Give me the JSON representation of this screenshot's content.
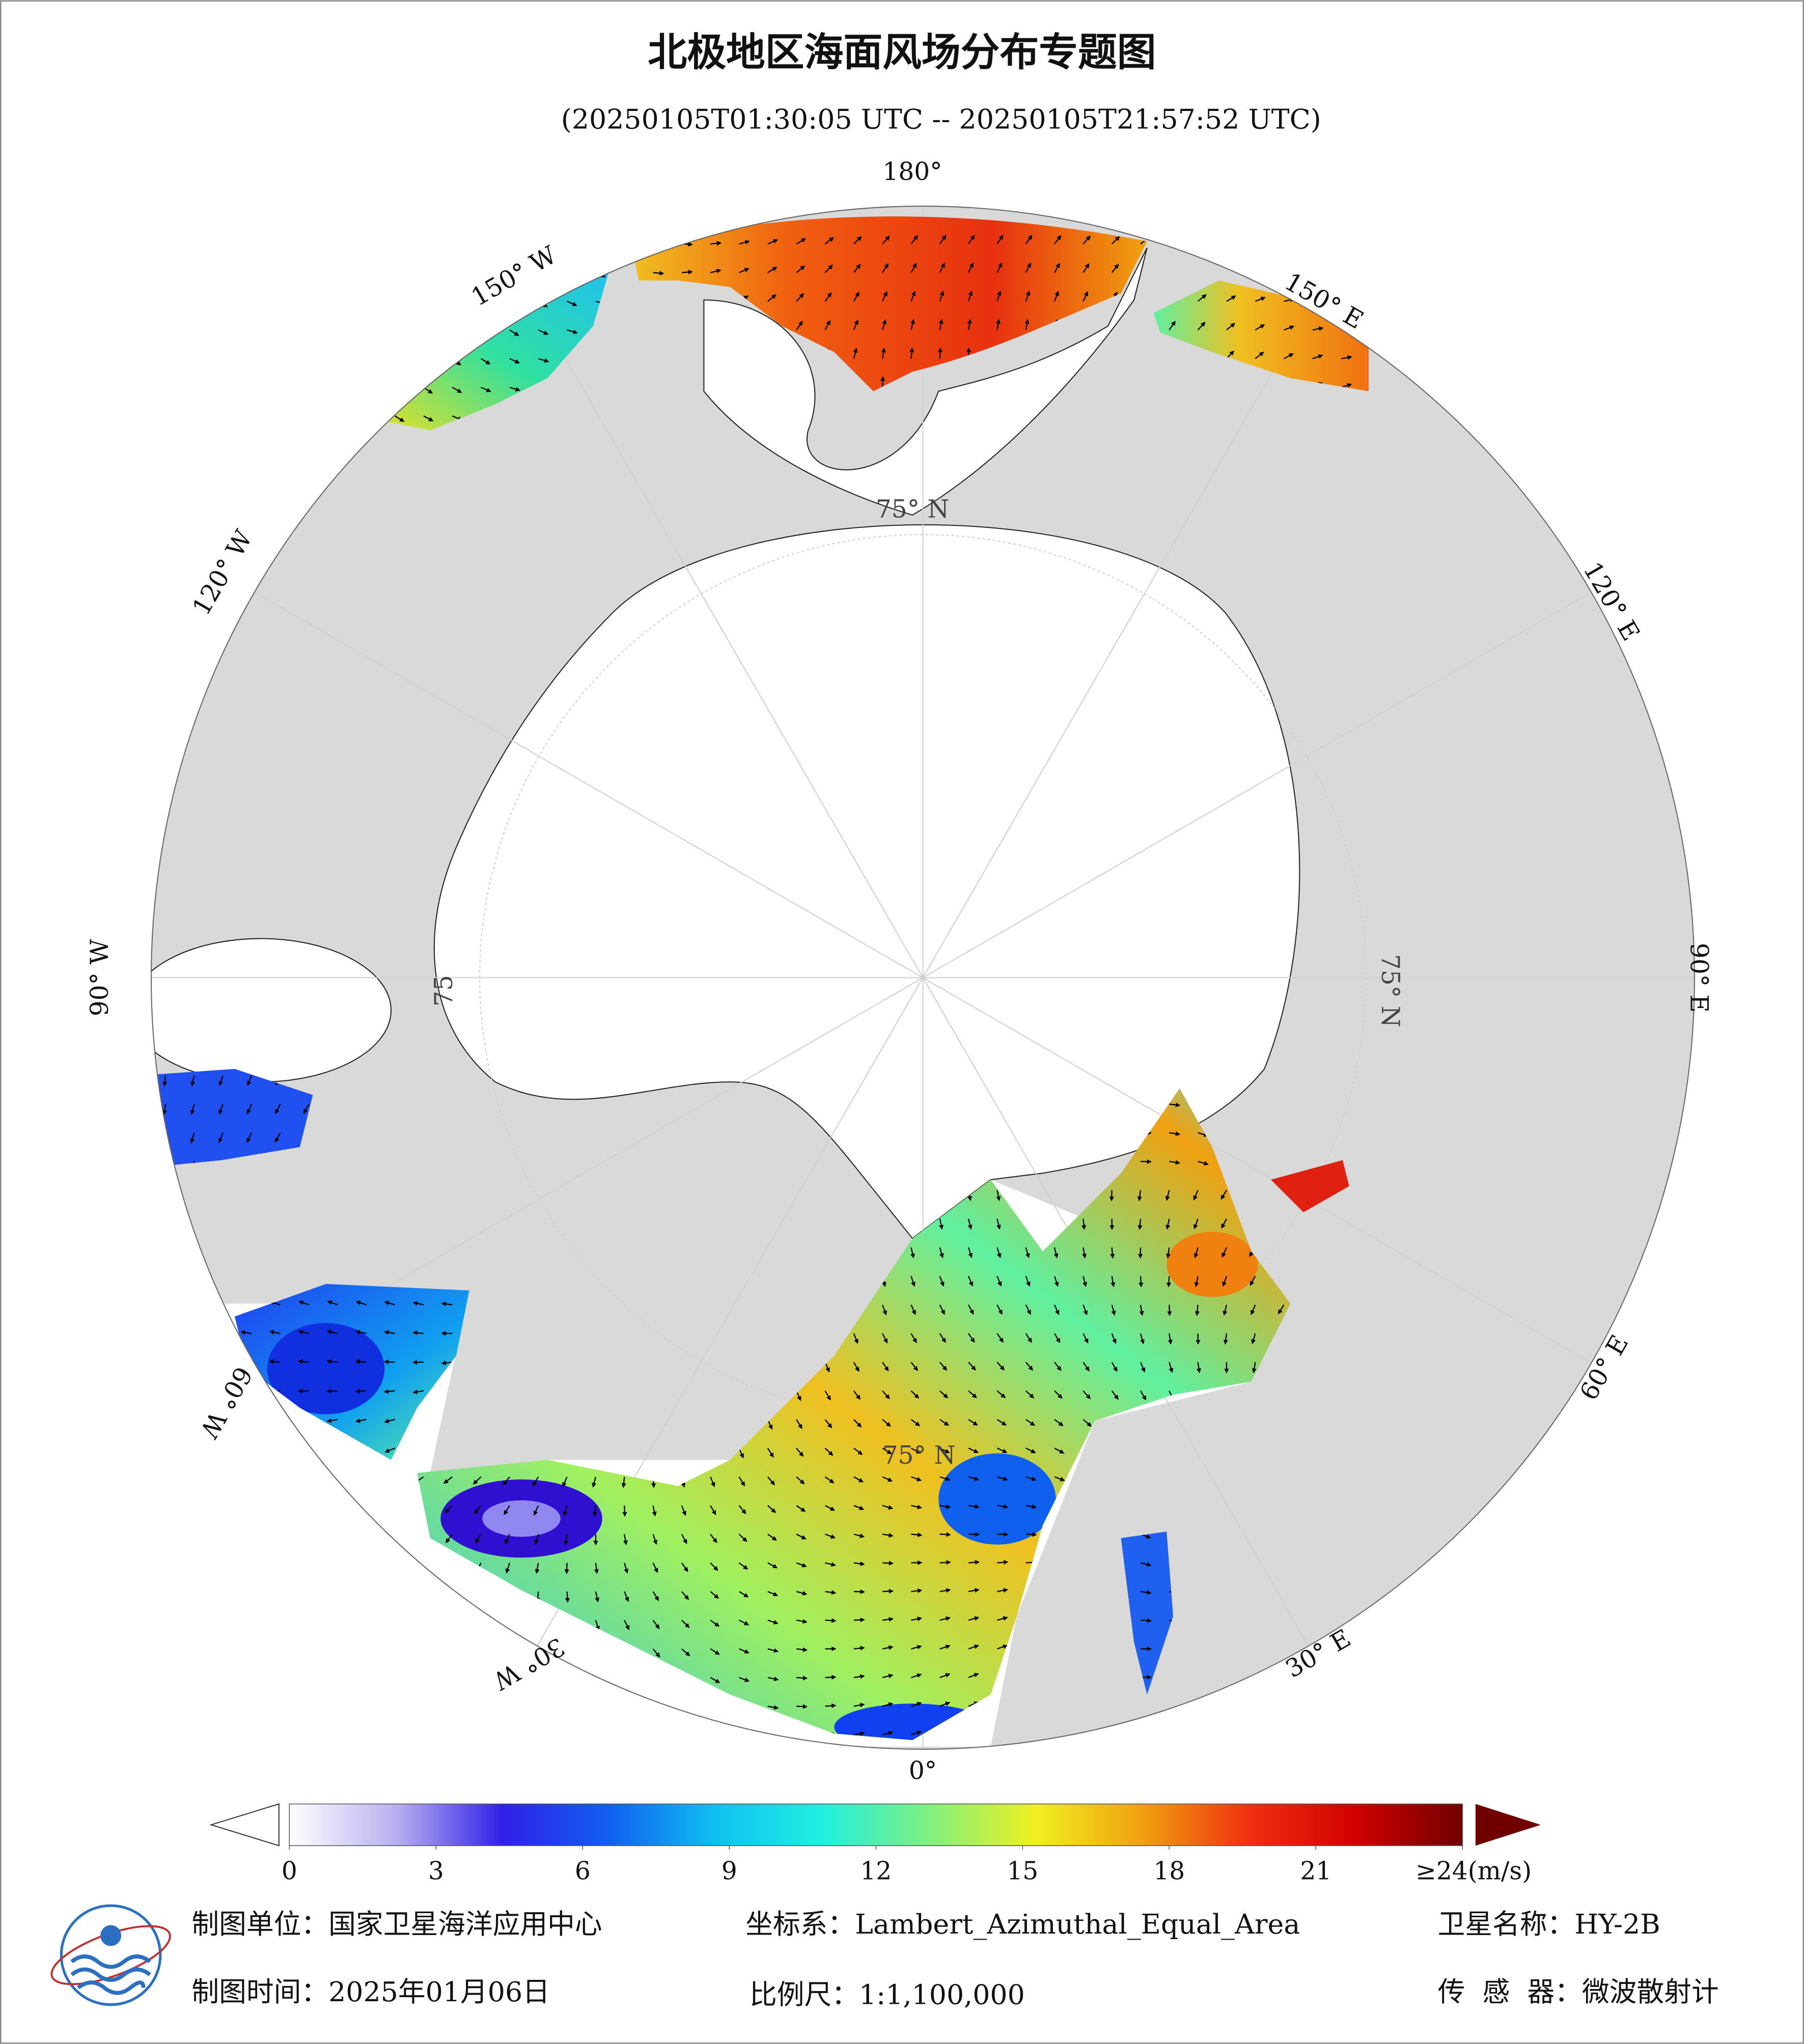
{
  "title": "北极地区海面风场分布专题图",
  "subtitle": "(20250105T01:30:05 UTC -- 20250105T21:57:52 UTC)",
  "map": {
    "longitude_labels": [
      "180°",
      "150° E",
      "120° E",
      "90° E",
      "60° E",
      "30° E",
      "0°",
      "30° W",
      "60° W",
      "90° W",
      "120° W",
      "150° W"
    ],
    "latitude_labels": [
      "75° N",
      "75° N",
      "75",
      "75° N"
    ]
  },
  "colorbar": {
    "range": [
      0,
      24
    ],
    "ticks": [
      0,
      3,
      6,
      9,
      12,
      15,
      18,
      21,
      {
        "value": 24,
        "label": "≥24(m/s)"
      }
    ],
    "colors": [
      "#ffffff",
      "#b8b0f0",
      "#3020e8",
      "#1060f0",
      "#10c0f0",
      "#20f0e0",
      "#80f080",
      "#f0f020",
      "#f0a010",
      "#f03010",
      "#d00000",
      "#700000"
    ]
  },
  "footer": {
    "unit": "制图单位：国家卫星海洋应用中心",
    "coordinate_system": "坐标系：Lambert_Azimuthal_Equal_Area",
    "satellite": "卫星名称：HY-2B",
    "date": "制图时间：2025年01月06日",
    "scale": "比例尺：1:1,100,000",
    "sensor": "传  感  器：微波散射计"
  }
}
